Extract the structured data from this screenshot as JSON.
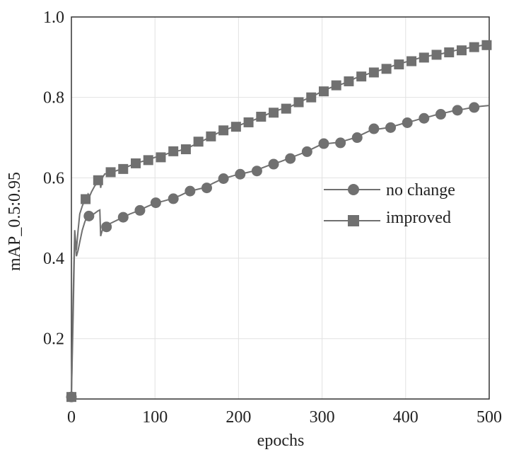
{
  "chart_data": {
    "type": "line",
    "xlabel": "epochs",
    "ylabel": "mAP_0.5:0.95",
    "xlim": [
      0,
      500
    ],
    "ylim": [
      0.05,
      1.0
    ],
    "xticks": [
      0,
      100,
      200,
      300,
      400,
      500
    ],
    "yticks": [
      0.2,
      0.4,
      0.6,
      0.8,
      1.0
    ],
    "ytick_labels": [
      "0.2",
      "0.4",
      "0.6",
      "0.8",
      "1.0"
    ],
    "grid": true,
    "legend_position": "center-right",
    "line_color": "#707070",
    "series": [
      {
        "name": "no change",
        "marker": "circle",
        "line": [
          [
            0,
            0.055
          ],
          [
            2,
            0.25
          ],
          [
            4,
            0.46
          ],
          [
            6,
            0.405
          ],
          [
            8,
            0.42
          ],
          [
            10,
            0.44
          ],
          [
            13,
            0.47
          ],
          [
            16,
            0.49
          ],
          [
            18,
            0.5
          ],
          [
            20,
            0.503
          ],
          [
            24,
            0.506
          ],
          [
            28,
            0.512
          ],
          [
            32,
            0.518
          ],
          [
            34,
            0.52
          ],
          [
            35,
            0.455
          ],
          [
            37,
            0.47
          ],
          [
            40,
            0.478
          ],
          [
            45,
            0.485
          ],
          [
            50,
            0.49
          ],
          [
            60,
            0.5
          ],
          [
            70,
            0.51
          ],
          [
            80,
            0.518
          ],
          [
            90,
            0.528
          ],
          [
            100,
            0.537
          ],
          [
            110,
            0.542
          ],
          [
            120,
            0.548
          ],
          [
            130,
            0.556
          ],
          [
            140,
            0.566
          ],
          [
            150,
            0.571
          ],
          [
            160,
            0.576
          ],
          [
            170,
            0.587
          ],
          [
            180,
            0.597
          ],
          [
            190,
            0.603
          ],
          [
            200,
            0.609
          ],
          [
            210,
            0.613
          ],
          [
            220,
            0.618
          ],
          [
            230,
            0.626
          ],
          [
            240,
            0.634
          ],
          [
            250,
            0.64
          ],
          [
            260,
            0.648
          ],
          [
            270,
            0.656
          ],
          [
            280,
            0.664
          ],
          [
            290,
            0.674
          ],
          [
            300,
            0.684
          ],
          [
            310,
            0.686
          ],
          [
            320,
            0.688
          ],
          [
            330,
            0.694
          ],
          [
            340,
            0.7
          ],
          [
            350,
            0.71
          ],
          [
            360,
            0.72
          ],
          [
            370,
            0.722
          ],
          [
            380,
            0.725
          ],
          [
            390,
            0.731
          ],
          [
            400,
            0.737
          ],
          [
            410,
            0.742
          ],
          [
            420,
            0.748
          ],
          [
            430,
            0.753
          ],
          [
            440,
            0.759
          ],
          [
            450,
            0.763
          ],
          [
            460,
            0.768
          ],
          [
            470,
            0.771
          ],
          [
            480,
            0.775
          ],
          [
            490,
            0.778
          ],
          [
            500,
            0.78
          ]
        ],
        "markers": [
          [
            0,
            0.055
          ],
          [
            21,
            0.505
          ],
          [
            42,
            0.478
          ],
          [
            62,
            0.502
          ],
          [
            82,
            0.519
          ],
          [
            101,
            0.538
          ],
          [
            122,
            0.548
          ],
          [
            142,
            0.567
          ],
          [
            162,
            0.575
          ],
          [
            182,
            0.598
          ],
          [
            202,
            0.609
          ],
          [
            222,
            0.617
          ],
          [
            242,
            0.634
          ],
          [
            262,
            0.648
          ],
          [
            282,
            0.665
          ],
          [
            302,
            0.685
          ],
          [
            322,
            0.687
          ],
          [
            342,
            0.7
          ],
          [
            362,
            0.722
          ],
          [
            382,
            0.725
          ],
          [
            402,
            0.737
          ],
          [
            422,
            0.748
          ],
          [
            442,
            0.758
          ],
          [
            462,
            0.768
          ],
          [
            482,
            0.775
          ]
        ]
      },
      {
        "name": "improved",
        "marker": "square",
        "line": [
          [
            0,
            0.055
          ],
          [
            2,
            0.3
          ],
          [
            4,
            0.47
          ],
          [
            6,
            0.42
          ],
          [
            8,
            0.47
          ],
          [
            10,
            0.51
          ],
          [
            13,
            0.53
          ],
          [
            16,
            0.545
          ],
          [
            18,
            0.55
          ],
          [
            20,
            0.56
          ],
          [
            22,
            0.555
          ],
          [
            24,
            0.565
          ],
          [
            28,
            0.58
          ],
          [
            32,
            0.59
          ],
          [
            34,
            0.6
          ],
          [
            35,
            0.575
          ],
          [
            37,
            0.6
          ],
          [
            40,
            0.61
          ],
          [
            45,
            0.61
          ],
          [
            50,
            0.615
          ],
          [
            60,
            0.622
          ],
          [
            70,
            0.63
          ],
          [
            80,
            0.638
          ],
          [
            90,
            0.644
          ],
          [
            100,
            0.651
          ],
          [
            110,
            0.656
          ],
          [
            120,
            0.664
          ],
          [
            130,
            0.668
          ],
          [
            140,
            0.675
          ],
          [
            150,
            0.685
          ],
          [
            160,
            0.695
          ],
          [
            170,
            0.706
          ],
          [
            180,
            0.716
          ],
          [
            190,
            0.724
          ],
          [
            200,
            0.73
          ],
          [
            210,
            0.738
          ],
          [
            220,
            0.745
          ],
          [
            230,
            0.754
          ],
          [
            240,
            0.763
          ],
          [
            250,
            0.77
          ],
          [
            260,
            0.775
          ],
          [
            270,
            0.785
          ],
          [
            280,
            0.795
          ],
          [
            290,
            0.804
          ],
          [
            300,
            0.815
          ],
          [
            310,
            0.824
          ],
          [
            320,
            0.83
          ],
          [
            330,
            0.838
          ],
          [
            340,
            0.848
          ],
          [
            350,
            0.855
          ],
          [
            360,
            0.862
          ],
          [
            370,
            0.868
          ],
          [
            380,
            0.875
          ],
          [
            390,
            0.882
          ],
          [
            400,
            0.888
          ],
          [
            410,
            0.894
          ],
          [
            420,
            0.9
          ],
          [
            430,
            0.904
          ],
          [
            440,
            0.907
          ],
          [
            450,
            0.912
          ],
          [
            460,
            0.917
          ],
          [
            470,
            0.921
          ],
          [
            480,
            0.925
          ],
          [
            490,
            0.929
          ],
          [
            500,
            0.93
          ]
        ],
        "markers": [
          [
            0,
            0.055
          ],
          [
            17,
            0.547
          ],
          [
            32,
            0.594
          ],
          [
            47,
            0.614
          ],
          [
            62,
            0.622
          ],
          [
            77,
            0.636
          ],
          [
            92,
            0.644
          ],
          [
            107,
            0.651
          ],
          [
            122,
            0.666
          ],
          [
            137,
            0.671
          ],
          [
            152,
            0.69
          ],
          [
            167,
            0.703
          ],
          [
            182,
            0.718
          ],
          [
            197,
            0.727
          ],
          [
            212,
            0.738
          ],
          [
            227,
            0.752
          ],
          [
            242,
            0.762
          ],
          [
            257,
            0.772
          ],
          [
            272,
            0.788
          ],
          [
            287,
            0.8
          ],
          [
            302,
            0.815
          ],
          [
            317,
            0.83
          ],
          [
            332,
            0.84
          ],
          [
            347,
            0.852
          ],
          [
            362,
            0.862
          ],
          [
            377,
            0.871
          ],
          [
            392,
            0.882
          ],
          [
            407,
            0.89
          ],
          [
            422,
            0.899
          ],
          [
            437,
            0.906
          ],
          [
            452,
            0.912
          ],
          [
            467,
            0.917
          ],
          [
            482,
            0.925
          ],
          [
            497,
            0.93
          ]
        ]
      }
    ]
  }
}
